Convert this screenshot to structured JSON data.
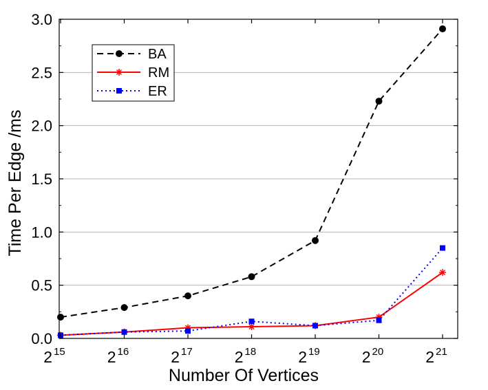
{
  "chart_data": {
    "type": "line",
    "title": "",
    "xlabel": "Number Of Vertices",
    "ylabel": "Time Per Edge /ms",
    "x": [
      15,
      16,
      17,
      18,
      19,
      20,
      21
    ],
    "x_tick_base": "2",
    "x_tick_exponents": [
      "15",
      "16",
      "17",
      "18",
      "19",
      "20",
      "21"
    ],
    "ylim": [
      0,
      3.0
    ],
    "y_ticks": [
      "0.0",
      "0.5",
      "1.0",
      "1.5",
      "2.0",
      "2.5",
      "3.0"
    ],
    "grid": "horizontal",
    "legend_position": "top-left",
    "series": [
      {
        "name": "BA",
        "values": [
          0.2,
          0.29,
          0.4,
          0.58,
          0.92,
          2.23,
          2.91
        ],
        "color": "#000000",
        "dash": "dashed",
        "marker": "circle"
      },
      {
        "name": "RM",
        "values": [
          0.03,
          0.06,
          0.1,
          0.11,
          0.12,
          0.2,
          0.62
        ],
        "color": "#ff0000",
        "dash": "solid",
        "marker": "star"
      },
      {
        "name": "ER",
        "values": [
          0.03,
          0.06,
          0.07,
          0.16,
          0.12,
          0.17,
          0.85
        ],
        "color": "#0000ff",
        "dash": "dotted",
        "marker": "square"
      }
    ]
  }
}
